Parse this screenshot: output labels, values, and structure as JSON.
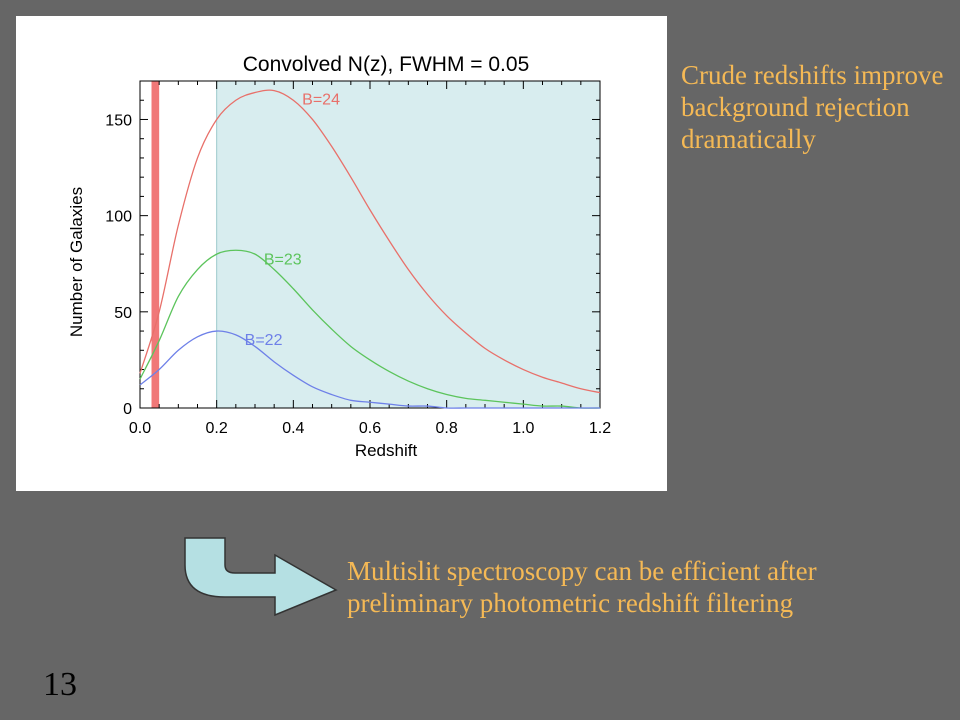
{
  "slide": {
    "number": "13",
    "note_top": "Crude redshifts improve background rejection dramatically",
    "note_bottom": "Multislit spectroscopy can be efficient after preliminary photometric redshift filtering",
    "colors": {
      "background": "#666666",
      "text": "#f5b955",
      "arrow_fill": "#b5e0e3",
      "arrow_stroke": "#333333"
    },
    "icons": [
      "curved-arrow-icon"
    ]
  },
  "chart_data": {
    "type": "line",
    "title": "Convolved N(z), FWHM = 0.05",
    "xlabel": "Redshift",
    "ylabel": "Number of Galaxies",
    "xlim": [
      0.0,
      1.2
    ],
    "ylim": [
      0,
      170
    ],
    "xticks": [
      "0.0",
      "0.2",
      "0.4",
      "0.6",
      "0.8",
      "1.0",
      "1.2"
    ],
    "yticks": [
      "0",
      "50",
      "100",
      "150"
    ],
    "grid": false,
    "shaded_region": {
      "x_start": 0.2,
      "x_end": 1.2,
      "color": "#d8edef"
    },
    "marker_band": {
      "x_start": 0.03,
      "x_end": 0.05,
      "color": "#f07878"
    },
    "x": [
      0.0,
      0.05,
      0.1,
      0.15,
      0.2,
      0.25,
      0.3,
      0.35,
      0.4,
      0.45,
      0.5,
      0.55,
      0.6,
      0.65,
      0.7,
      0.75,
      0.8,
      0.85,
      0.9,
      0.95,
      1.0,
      1.05,
      1.1,
      1.15,
      1.2
    ],
    "series": [
      {
        "name": "B=24",
        "color": "#e8706a",
        "values": [
          18,
          50,
          95,
          130,
          150,
          160,
          164,
          165,
          160,
          150,
          136,
          120,
          103,
          87,
          72,
          59,
          48,
          39,
          31,
          25,
          20,
          16,
          13,
          10,
          8
        ]
      },
      {
        "name": "B=23",
        "color": "#5cc45c",
        "values": [
          15,
          35,
          58,
          72,
          80,
          82,
          80,
          72,
          62,
          51,
          41,
          32,
          25,
          19,
          14,
          10,
          7,
          5,
          4,
          3,
          2,
          1,
          1,
          0,
          0
        ]
      },
      {
        "name": "B=22",
        "color": "#6e80e8",
        "values": [
          12,
          20,
          30,
          37,
          40,
          38,
          32,
          24,
          17,
          11,
          7,
          4,
          3,
          2,
          1,
          1,
          0,
          0,
          0,
          0,
          0,
          0,
          0,
          0,
          0
        ]
      }
    ]
  }
}
